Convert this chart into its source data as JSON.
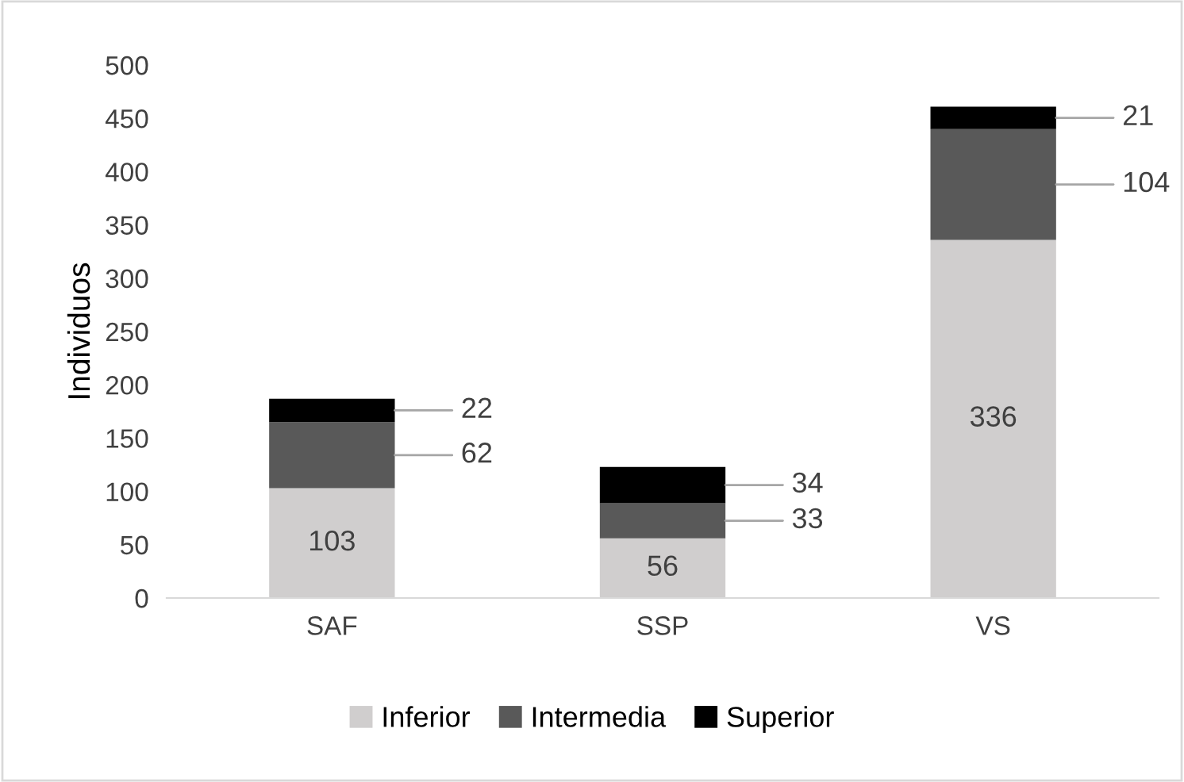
{
  "chart_data": {
    "type": "bar",
    "stacked": true,
    "ylabel": "Individuos",
    "categories": [
      "SAF",
      "SSP",
      "VS"
    ],
    "series": [
      {
        "name": "Inferior",
        "color": "#d0cece",
        "values": [
          103,
          56,
          336
        ]
      },
      {
        "name": "Intermedia",
        "color": "#595959",
        "values": [
          62,
          33,
          104
        ]
      },
      {
        "name": "Superior",
        "color": "#000000",
        "values": [
          22,
          34,
          21
        ]
      }
    ],
    "ylim": [
      0,
      500
    ],
    "yticks": [
      0,
      50,
      100,
      150,
      200,
      250,
      300,
      350,
      400,
      450,
      500
    ],
    "grid": false,
    "legend": "bottom",
    "data_labels": true
  }
}
